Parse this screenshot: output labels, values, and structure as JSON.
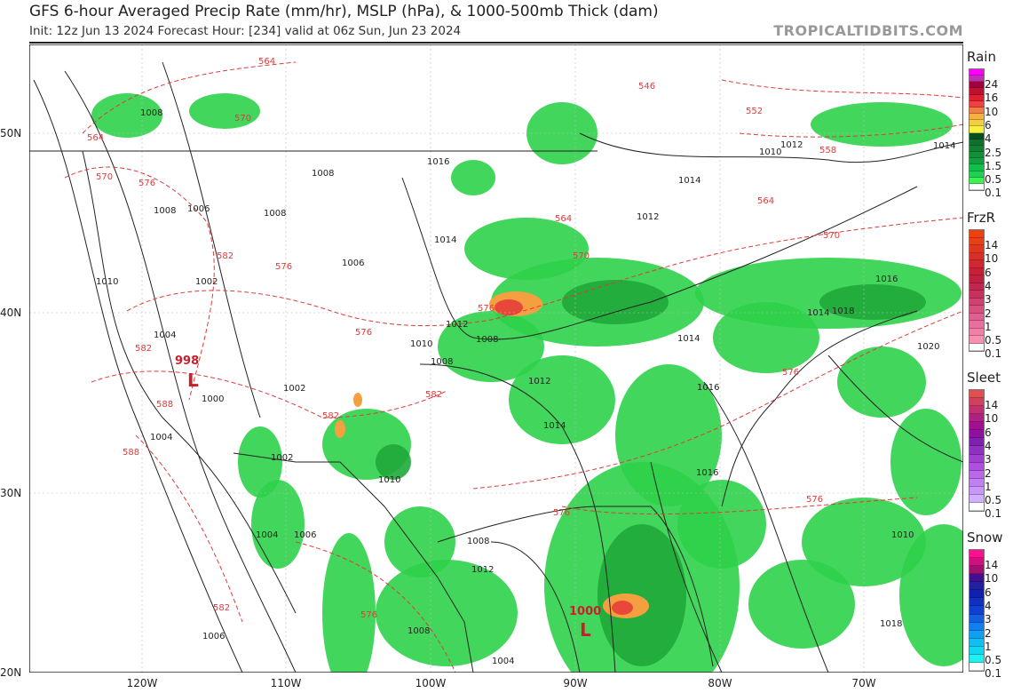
{
  "header": {
    "title": "GFS 6-hour Averaged Precip Rate (mm/hr), MSLP (hPa), & 1000-500mb Thick (dam)",
    "subtitle": "Init: 12z Jun 13 2024   Forecast Hour: [234]   valid at 06z Sun, Jun 23 2024",
    "brand": "TROPICALTIDBITS.COM"
  },
  "axes": {
    "lat": [
      "50N",
      "40N",
      "30N",
      "20N"
    ],
    "lon": [
      "120W",
      "110W",
      "100W",
      "90W",
      "80W",
      "70W"
    ]
  },
  "lows": [
    {
      "symbol": "L",
      "pressure": "998"
    },
    {
      "symbol": "L",
      "pressure": "1000"
    }
  ],
  "isobar_labels": [
    "1008",
    "1008",
    "1008",
    "1006",
    "1008",
    "1006",
    "1002",
    "1010",
    "1004",
    "1000",
    "1004",
    "1002",
    "1002",
    "1010",
    "1012",
    "1008",
    "1010",
    "1008",
    "1016",
    "1014",
    "1014",
    "1012",
    "1014",
    "1010",
    "1012",
    "1014",
    "1016",
    "1018",
    "1020",
    "1016",
    "1010",
    "1008",
    "1012",
    "1004",
    "1006",
    "1004",
    "1008",
    "1006",
    "1018",
    "1016",
    "1014",
    "1014",
    "1012"
  ],
  "thickness_labels": [
    "564",
    "570",
    "564",
    "570",
    "576",
    "582",
    "576",
    "582",
    "588",
    "588",
    "576",
    "582",
    "576",
    "582",
    "576",
    "564",
    "570",
    "546",
    "552",
    "558",
    "564",
    "570",
    "576",
    "576",
    "582",
    "576"
  ],
  "colors": {
    "precip_light": "#2fd24a",
    "precip_mid": "#1fa83a",
    "precip_heavy": "#e8483a",
    "precip_moderate": "#f5a040",
    "isobar": "#222222",
    "thickness": "#e03a3a",
    "low": "#c8202a"
  },
  "legends": [
    {
      "title": "Rain",
      "ticks": [
        "24",
        "16",
        "10",
        "6",
        "4",
        "2.5",
        "1.5",
        "0.5",
        "0.1"
      ],
      "colors": [
        "#ff00ff",
        "#c030b0",
        "#a00040",
        "#c01030",
        "#e02030",
        "#f04040",
        "#f08040",
        "#f8b040",
        "#f0d040",
        "#f8f040",
        "#005020",
        "#107030",
        "#108030",
        "#109038",
        "#10a040",
        "#10c048",
        "#20d050",
        "#40f050",
        "#ffffff"
      ]
    },
    {
      "title": "FrzR",
      "ticks": [
        "14",
        "10",
        "6",
        "4",
        "3",
        "2",
        "1",
        "0.5",
        "0.1"
      ],
      "colors": [
        "#f04010",
        "#e84018",
        "#e03820",
        "#d83028",
        "#d02830",
        "#c82038",
        "#c02040",
        "#c02850",
        "#c83060",
        "#d04070",
        "#d85080",
        "#e06090",
        "#e870a0",
        "#f080a8",
        "#f890b0",
        "#ffffff"
      ]
    },
    {
      "title": "Sleet",
      "ticks": [
        "14",
        "10",
        "6",
        "4",
        "3",
        "2",
        "1",
        "0.5",
        "0.1"
      ],
      "colors": [
        "#e05050",
        "#d04060",
        "#c03070",
        "#b02080",
        "#a01090",
        "#9010a0",
        "#8020b0",
        "#9030c0",
        "#a040d0",
        "#b050e0",
        "#b868e8",
        "#c080f0",
        "#c898f8",
        "#d0b0ff",
        "#ffffff"
      ]
    },
    {
      "title": "Snow",
      "ticks": [
        "14",
        "10",
        "6",
        "4",
        "3",
        "2",
        "1",
        "0.5",
        "0.1"
      ],
      "colors": [
        "#ff1090",
        "#d01080",
        "#a01070",
        "#401090",
        "#2020a0",
        "#1020b0",
        "#1030c0",
        "#1040d0",
        "#1060e0",
        "#1080f0",
        "#10a0f0",
        "#10c0f0",
        "#10d8f0",
        "#20f0f0",
        "#ffffff"
      ]
    }
  ]
}
